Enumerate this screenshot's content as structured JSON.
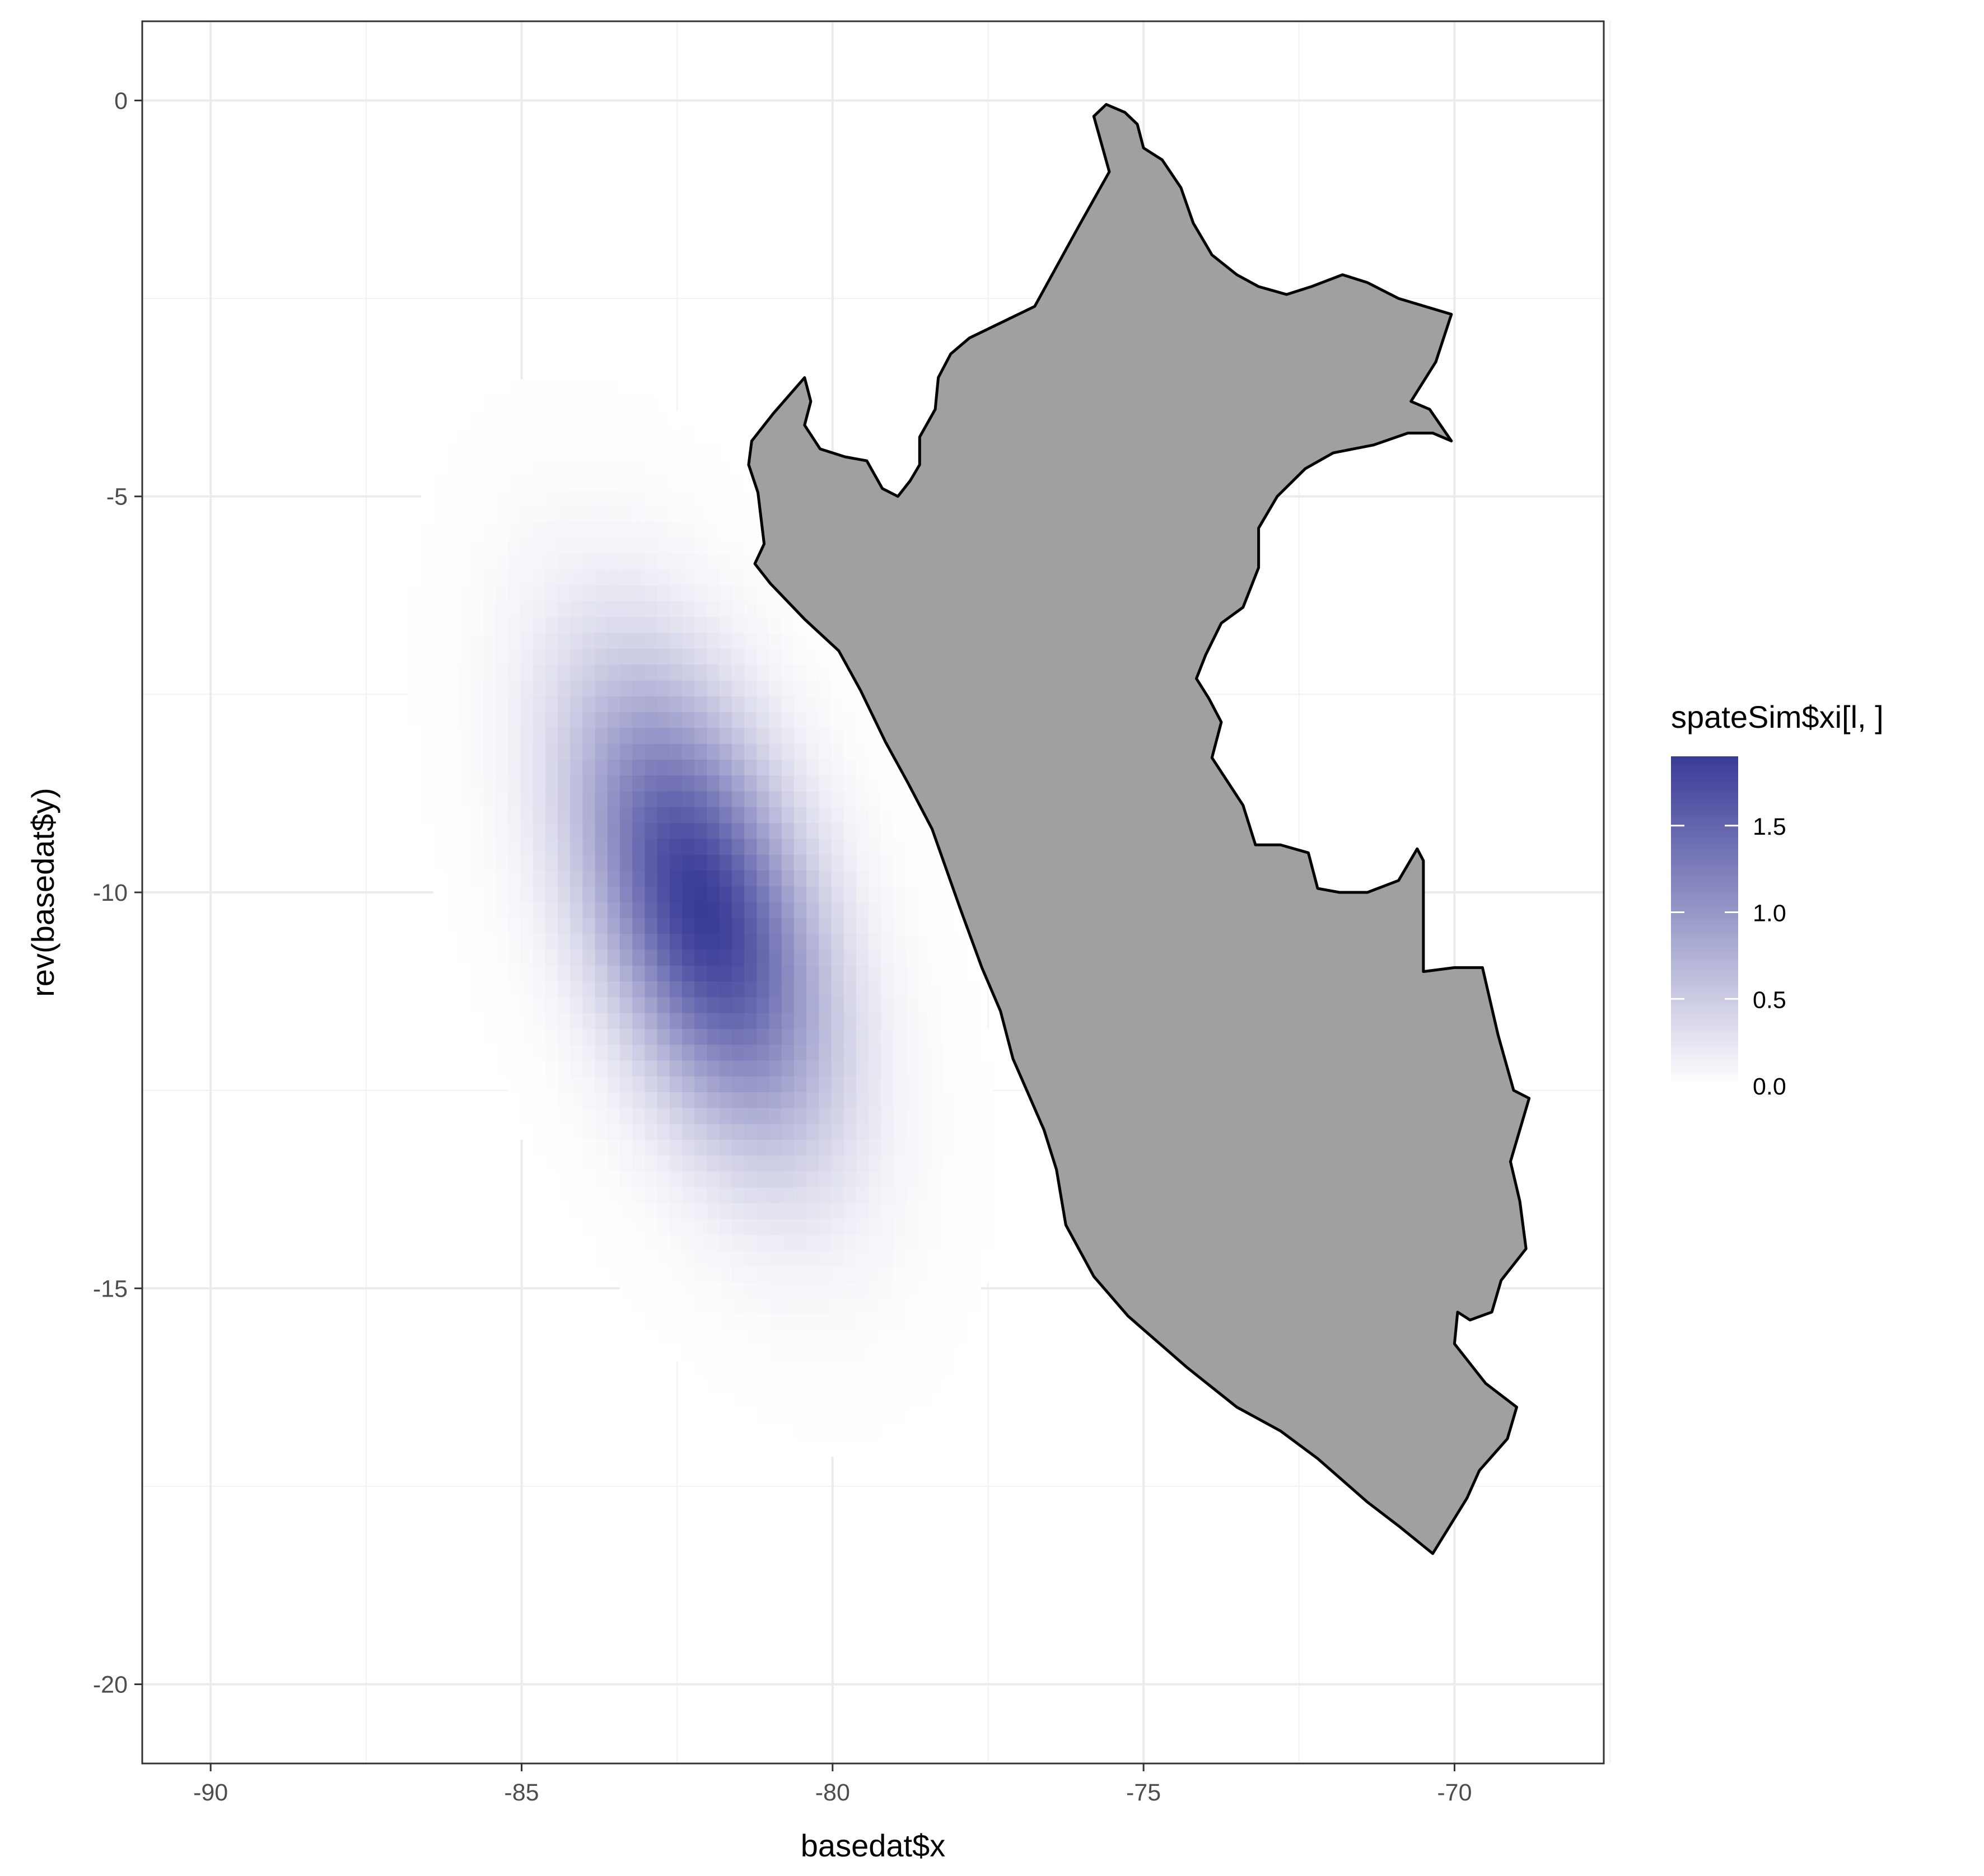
{
  "chart_data": {
    "type": "heatmap",
    "title": "",
    "xlabel": "basedat$x",
    "ylabel": "rev(basedat$y)",
    "xlim": [
      -91.1,
      -67.6
    ],
    "ylim": [
      -21.0,
      1.0
    ],
    "x_ticks": [
      -90,
      -85,
      -80,
      -75,
      -70
    ],
    "x_tick_labels": [
      "-90",
      "-85",
      "-80",
      "-75",
      "-70"
    ],
    "y_ticks": [
      0,
      -5,
      -10,
      -15,
      -20
    ],
    "y_tick_labels": [
      "0",
      "-5",
      "-10",
      "-15",
      "-20"
    ],
    "grid": true,
    "theme": "bw",
    "legend": {
      "title": "spateSim$xi[l, ]",
      "placement": "right",
      "min": 0.0,
      "max": 1.9,
      "breaks": [
        0.0,
        0.5,
        1.0,
        1.5
      ],
      "break_labels": [
        "0.0",
        "0.5",
        "1.0",
        "1.5"
      ],
      "low_color": "#ffffff",
      "high_color": "#3a3b97"
    },
    "field": {
      "peak_value": 1.9,
      "center": [
        -82.1,
        -10.2
      ],
      "sd_major": 2.1,
      "sd_minor": 1.1,
      "major_axis_angle_deg": 64,
      "grid_step": 0.2
    },
    "country_outline": {
      "name": "Peru",
      "fill": "#a0a0a0",
      "stroke": "#000000",
      "points": [
        [
          -75.6,
          -0.05
        ],
        [
          -75.3,
          -0.15
        ],
        [
          -75.1,
          -0.3
        ],
        [
          -75.0,
          -0.6
        ],
        [
          -74.7,
          -0.75
        ],
        [
          -74.4,
          -1.1
        ],
        [
          -74.2,
          -1.55
        ],
        [
          -73.9,
          -1.95
        ],
        [
          -73.5,
          -2.2
        ],
        [
          -73.15,
          -2.35
        ],
        [
          -72.7,
          -2.45
        ],
        [
          -72.3,
          -2.35
        ],
        [
          -71.8,
          -2.2
        ],
        [
          -71.4,
          -2.3
        ],
        [
          -70.9,
          -2.5
        ],
        [
          -70.05,
          -2.7
        ],
        [
          -70.3,
          -3.3
        ],
        [
          -70.7,
          -3.8
        ],
        [
          -70.4,
          -3.9
        ],
        [
          -70.05,
          -4.3
        ],
        [
          -70.35,
          -4.2
        ],
        [
          -70.75,
          -4.2
        ],
        [
          -71.3,
          -4.35
        ],
        [
          -71.95,
          -4.45
        ],
        [
          -72.4,
          -4.65
        ],
        [
          -72.85,
          -5.0
        ],
        [
          -73.15,
          -5.4
        ],
        [
          -73.15,
          -5.9
        ],
        [
          -73.4,
          -6.4
        ],
        [
          -73.75,
          -6.6
        ],
        [
          -74.0,
          -7.0
        ],
        [
          -74.15,
          -7.3
        ],
        [
          -73.95,
          -7.55
        ],
        [
          -73.75,
          -7.85
        ],
        [
          -73.9,
          -8.3
        ],
        [
          -73.65,
          -8.6
        ],
        [
          -73.4,
          -8.9
        ],
        [
          -73.2,
          -9.4
        ],
        [
          -72.8,
          -9.4
        ],
        [
          -72.35,
          -9.5
        ],
        [
          -72.2,
          -9.95
        ],
        [
          -71.85,
          -10.0
        ],
        [
          -71.4,
          -10.0
        ],
        [
          -70.9,
          -9.85
        ],
        [
          -70.6,
          -9.45
        ],
        [
          -70.5,
          -9.6
        ],
        [
          -70.5,
          -11.0
        ],
        [
          -70.0,
          -10.95
        ],
        [
          -69.55,
          -10.95
        ],
        [
          -69.3,
          -11.8
        ],
        [
          -69.05,
          -12.5
        ],
        [
          -68.8,
          -12.6
        ],
        [
          -69.1,
          -13.4
        ],
        [
          -68.95,
          -13.9
        ],
        [
          -68.85,
          -14.5
        ],
        [
          -69.25,
          -14.9
        ],
        [
          -69.4,
          -15.3
        ],
        [
          -69.75,
          -15.4
        ],
        [
          -69.95,
          -15.3
        ],
        [
          -70.0,
          -15.7
        ],
        [
          -69.5,
          -16.2
        ],
        [
          -69.0,
          -16.5
        ],
        [
          -69.15,
          -16.9
        ],
        [
          -69.6,
          -17.3
        ],
        [
          -69.8,
          -17.65
        ],
        [
          -70.35,
          -18.35
        ],
        [
          -70.9,
          -18.0
        ],
        [
          -71.4,
          -17.7
        ],
        [
          -72.2,
          -17.15
        ],
        [
          -72.8,
          -16.8
        ],
        [
          -73.5,
          -16.5
        ],
        [
          -74.3,
          -16.0
        ],
        [
          -75.25,
          -15.35
        ],
        [
          -75.8,
          -14.85
        ],
        [
          -76.25,
          -14.2
        ],
        [
          -76.4,
          -13.5
        ],
        [
          -76.6,
          -13.0
        ],
        [
          -76.85,
          -12.55
        ],
        [
          -77.1,
          -12.1
        ],
        [
          -77.3,
          -11.5
        ],
        [
          -77.6,
          -10.95
        ],
        [
          -77.95,
          -10.2
        ],
        [
          -78.4,
          -9.2
        ],
        [
          -78.8,
          -8.6
        ],
        [
          -79.15,
          -8.1
        ],
        [
          -79.55,
          -7.45
        ],
        [
          -79.9,
          -6.95
        ],
        [
          -80.45,
          -6.55
        ],
        [
          -81.0,
          -6.1
        ],
        [
          -81.25,
          -5.85
        ],
        [
          -81.1,
          -5.6
        ],
        [
          -81.2,
          -4.95
        ],
        [
          -81.35,
          -4.6
        ],
        [
          -81.3,
          -4.3
        ],
        [
          -80.95,
          -3.95
        ],
        [
          -80.45,
          -3.5
        ],
        [
          -80.35,
          -3.8
        ],
        [
          -80.45,
          -4.1
        ],
        [
          -80.2,
          -4.4
        ],
        [
          -79.8,
          -4.5
        ],
        [
          -79.45,
          -4.55
        ],
        [
          -79.2,
          -4.9
        ],
        [
          -78.95,
          -5.0
        ],
        [
          -78.75,
          -4.8
        ],
        [
          -78.6,
          -4.6
        ],
        [
          -78.6,
          -4.25
        ],
        [
          -78.35,
          -3.9
        ],
        [
          -78.3,
          -3.5
        ],
        [
          -78.1,
          -3.2
        ],
        [
          -77.8,
          -3.0
        ],
        [
          -76.75,
          -2.6
        ],
        [
          -76.05,
          -1.6
        ],
        [
          -75.55,
          -0.9
        ],
        [
          -75.8,
          -0.2
        ]
      ]
    }
  }
}
